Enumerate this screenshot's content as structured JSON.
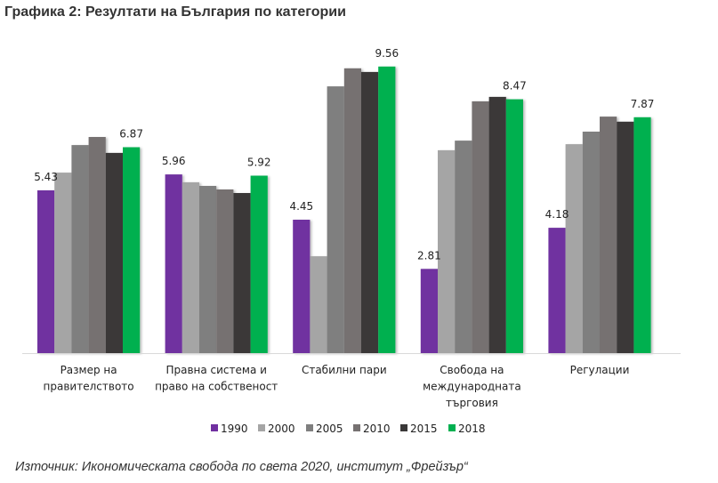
{
  "page": {
    "title": "Графика 2: Резултати на България по категории",
    "source": "Източник: Икономическата свобода по света 2020, институт „Фрейзър“"
  },
  "chart_data": {
    "type": "bar",
    "title": "Графика 2: Резултати на България по категории",
    "xlabel": "",
    "ylabel": "",
    "ylim": [
      0,
      10
    ],
    "grid": false,
    "legend_position": "bottom",
    "categories": [
      [
        "Размер на",
        "правителството"
      ],
      [
        "Правна система и",
        "право на собственост"
      ],
      [
        "Стабилни пари"
      ],
      [
        "Свобода на",
        "международната",
        "търговия"
      ],
      [
        "Регулации"
      ]
    ],
    "series": [
      {
        "name": "1990",
        "color": "#7030a0",
        "values": [
          5.43,
          5.96,
          4.45,
          2.81,
          4.18
        ],
        "labeled": true
      },
      {
        "name": "2000",
        "color": "#a5a5a5",
        "values": [
          6.02,
          5.7,
          3.23,
          6.77,
          6.97
        ],
        "labeled": false
      },
      {
        "name": "2005",
        "color": "#7f7f7f",
        "values": [
          6.94,
          5.58,
          8.9,
          7.09,
          7.39
        ],
        "labeled": false
      },
      {
        "name": "2010",
        "color": "#767171",
        "values": [
          7.21,
          5.46,
          9.5,
          8.4,
          7.89
        ],
        "labeled": false
      },
      {
        "name": "2015",
        "color": "#3a3838",
        "values": [
          6.68,
          5.34,
          9.38,
          8.55,
          7.72
        ],
        "labeled": false
      },
      {
        "name": "2018",
        "color": "#00b050",
        "values": [
          6.87,
          5.92,
          9.56,
          8.47,
          7.87
        ],
        "labeled": true
      }
    ],
    "data_labels": [
      [
        "5.43",
        "6.87"
      ],
      [
        "5.96",
        "5.92"
      ],
      [
        "4.45",
        "9.56"
      ],
      [
        "2.81",
        "8.47"
      ],
      [
        "4.18",
        "7.87"
      ]
    ]
  }
}
